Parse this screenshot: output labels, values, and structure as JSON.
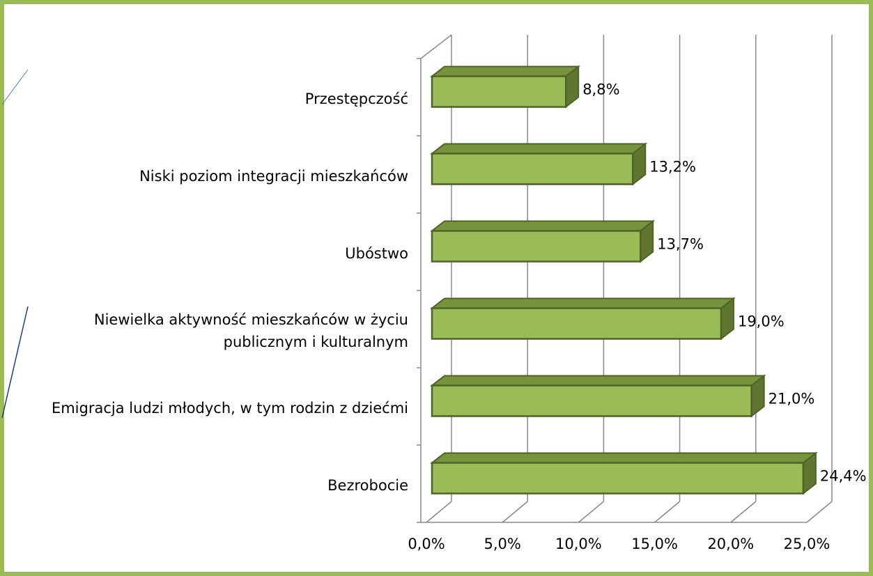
{
  "chart_data": {
    "type": "bar3d",
    "categories": [
      "Przestępczość",
      "Niski poziom integracji mieszkańców",
      "Ubóstwo",
      "Niewielka aktywność mieszkańców w życiu publicznym i kulturalnym",
      "Emigracja ludzi młodych, w tym rodzin z dziećmi",
      "Bezrobocie"
    ],
    "values": [
      8.8,
      13.2,
      13.7,
      19.0,
      21.0,
      24.4
    ],
    "value_labels": [
      "8,8%",
      "13,2%",
      "13,7%",
      "19,0%",
      "21,0%",
      "24,4%"
    ],
    "color": "#9bbb59",
    "xlim": [
      0,
      25
    ],
    "xticks": [
      {
        "value": 0,
        "label": "0,0%"
      },
      {
        "value": 5,
        "label": "5,0%"
      },
      {
        "value": 10,
        "label": "10,0%"
      },
      {
        "value": 15,
        "label": "15,0%"
      },
      {
        "value": 20,
        "label": "20,0%"
      },
      {
        "value": 25,
        "label": "25,0%"
      }
    ],
    "grid": true
  }
}
